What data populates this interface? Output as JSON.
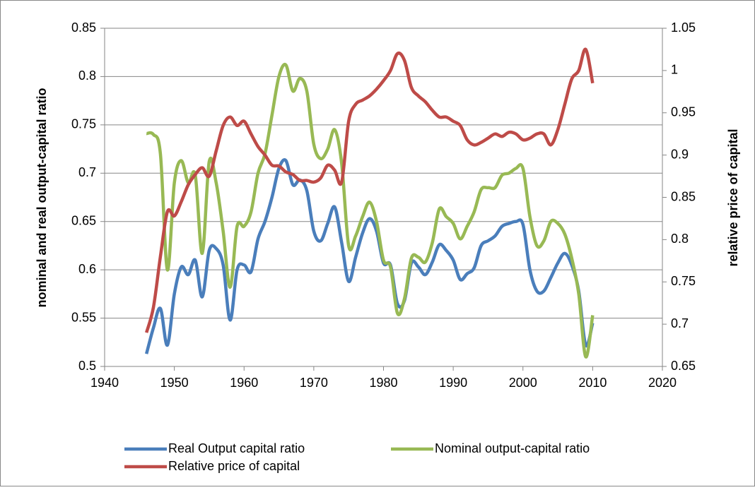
{
  "chart_data": {
    "type": "line",
    "x": [
      1946,
      1947,
      1948,
      1949,
      1950,
      1951,
      1952,
      1953,
      1954,
      1955,
      1956,
      1957,
      1958,
      1959,
      1960,
      1961,
      1962,
      1963,
      1964,
      1965,
      1966,
      1967,
      1968,
      1969,
      1970,
      1971,
      1972,
      1973,
      1974,
      1975,
      1976,
      1977,
      1978,
      1979,
      1980,
      1981,
      1982,
      1983,
      1984,
      1985,
      1986,
      1987,
      1988,
      1989,
      1990,
      1991,
      1992,
      1993,
      1994,
      1995,
      1996,
      1997,
      1998,
      1999,
      2000,
      2001,
      2002,
      2003,
      2004,
      2005,
      2006,
      2007,
      2008,
      2009,
      2010
    ],
    "series": [
      {
        "name": "Real Output capital ratio",
        "color": "#4a7ebb",
        "axis": "y",
        "values": [
          0.513,
          0.54,
          0.56,
          0.522,
          0.575,
          0.603,
          0.595,
          0.61,
          0.572,
          0.62,
          0.622,
          0.605,
          0.548,
          0.6,
          0.605,
          0.598,
          0.632,
          0.65,
          0.675,
          0.705,
          0.713,
          0.688,
          0.693,
          0.682,
          0.64,
          0.63,
          0.648,
          0.665,
          0.628,
          0.588,
          0.613,
          0.638,
          0.653,
          0.64,
          0.607,
          0.605,
          0.565,
          0.568,
          0.607,
          0.603,
          0.595,
          0.608,
          0.626,
          0.62,
          0.61,
          0.59,
          0.596,
          0.602,
          0.625,
          0.63,
          0.635,
          0.645,
          0.648,
          0.65,
          0.647,
          0.6,
          0.578,
          0.578,
          0.592,
          0.607,
          0.617,
          0.605,
          0.578,
          0.522,
          0.545
        ]
      },
      {
        "name": "Nominal output-capital ratio",
        "color": "#98b954",
        "axis": "y",
        "values": [
          0.741,
          0.74,
          0.72,
          0.6,
          0.69,
          0.713,
          0.69,
          0.698,
          0.617,
          0.712,
          0.69,
          0.64,
          0.582,
          0.645,
          0.645,
          0.66,
          0.7,
          0.72,
          0.76,
          0.8,
          0.812,
          0.785,
          0.798,
          0.785,
          0.73,
          0.715,
          0.725,
          0.745,
          0.71,
          0.625,
          0.635,
          0.655,
          0.67,
          0.65,
          0.61,
          0.603,
          0.555,
          0.57,
          0.612,
          0.613,
          0.608,
          0.628,
          0.663,
          0.655,
          0.648,
          0.632,
          0.645,
          0.66,
          0.683,
          0.685,
          0.685,
          0.698,
          0.7,
          0.705,
          0.705,
          0.655,
          0.625,
          0.63,
          0.65,
          0.648,
          0.637,
          0.612,
          0.575,
          0.51,
          0.553
        ]
      },
      {
        "name": "Relative price of capital",
        "color": "#be4b48",
        "axis": "y2",
        "values": [
          0.69,
          0.72,
          0.78,
          0.833,
          0.828,
          0.845,
          0.865,
          0.877,
          0.885,
          0.875,
          0.905,
          0.935,
          0.945,
          0.935,
          0.94,
          0.925,
          0.91,
          0.9,
          0.888,
          0.887,
          0.88,
          0.877,
          0.87,
          0.87,
          0.868,
          0.873,
          0.888,
          0.882,
          0.868,
          0.94,
          0.96,
          0.965,
          0.97,
          0.978,
          0.988,
          1.0,
          1.02,
          1.012,
          0.98,
          0.97,
          0.963,
          0.953,
          0.945,
          0.945,
          0.94,
          0.935,
          0.918,
          0.912,
          0.915,
          0.92,
          0.925,
          0.922,
          0.927,
          0.925,
          0.918,
          0.92,
          0.925,
          0.925,
          0.912,
          0.93,
          0.96,
          0.99,
          1.0,
          1.025,
          0.985
        ]
      }
    ],
    "y_label": "nominal and real output-capital ratio",
    "y2_label": "relative price of capital",
    "xlim": [
      1940,
      2020
    ],
    "xticks": [
      1940,
      1950,
      1960,
      1970,
      1980,
      1990,
      2000,
      2010,
      2020
    ],
    "ylim": [
      0.5,
      0.85
    ],
    "yticks": [
      0.5,
      0.55,
      0.6,
      0.65,
      0.7,
      0.75,
      0.8,
      0.85
    ],
    "y2lim": [
      0.65,
      1.05
    ],
    "y2ticks": [
      0.65,
      0.7,
      0.75,
      0.8,
      0.85,
      0.9,
      0.95,
      1,
      1.05
    ],
    "grid": true
  }
}
